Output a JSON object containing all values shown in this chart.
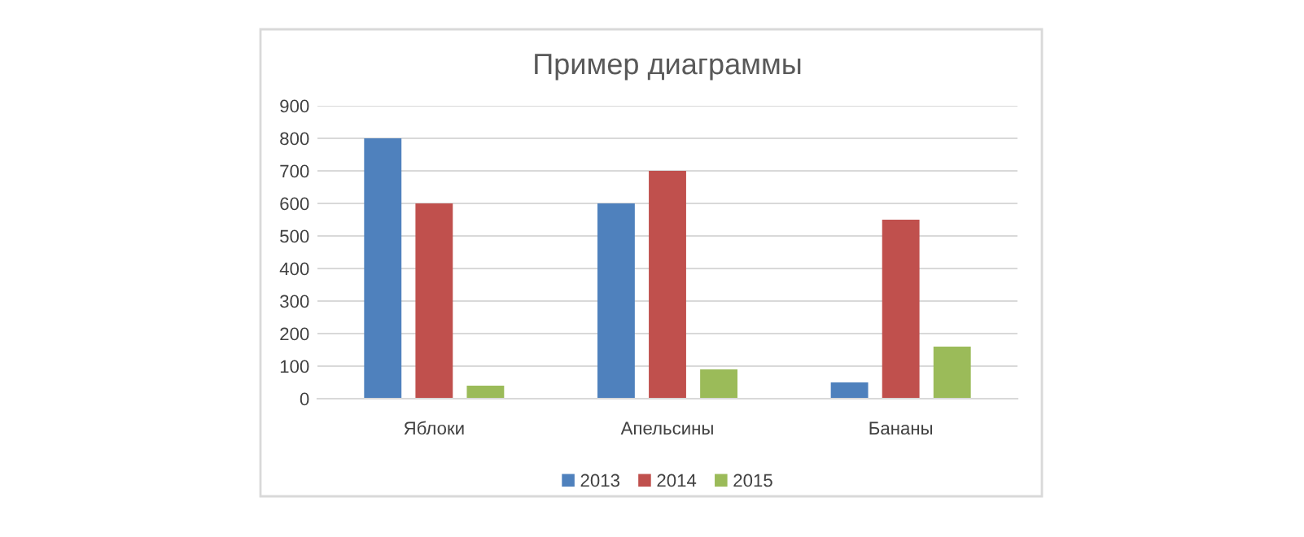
{
  "chart_data": {
    "type": "bar",
    "title": "Пример диаграммы",
    "categories": [
      "Яблоки",
      "Апельсины",
      "Бананы"
    ],
    "series": [
      {
        "name": "2013",
        "color": "#4f81bd",
        "values": [
          800,
          600,
          50
        ]
      },
      {
        "name": "2014",
        "color": "#c0504d",
        "values": [
          600,
          700,
          550
        ]
      },
      {
        "name": "2015",
        "color": "#9bbb59",
        "values": [
          40,
          90,
          160
        ]
      }
    ],
    "ylim": [
      0,
      900
    ],
    "yticks": [
      0,
      100,
      200,
      300,
      400,
      500,
      600,
      700,
      800,
      900
    ],
    "grid": "y",
    "legend": "bottom"
  }
}
